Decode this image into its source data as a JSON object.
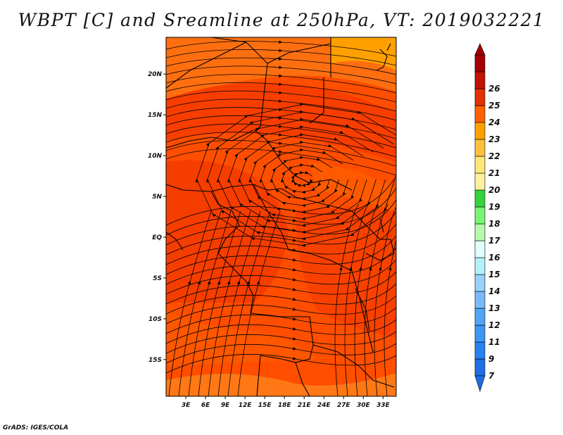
{
  "title": "WBPT [C] and Sreamline at 250hPa, VT: 2019032221",
  "credit": "GrADS: IGES/COLA",
  "map": {
    "lat_ticks": [
      "20N",
      "15N",
      "10N",
      "5N",
      "EQ",
      "5S",
      "10S",
      "15S"
    ],
    "lat_values": [
      20,
      15,
      10,
      5,
      0,
      -5,
      -10,
      -15
    ],
    "lon_ticks": [
      "3E",
      "6E",
      "9E",
      "12E",
      "15E",
      "18E",
      "21E",
      "24E",
      "27E",
      "30E",
      "33E"
    ],
    "lon_values": [
      3,
      6,
      9,
      12,
      15,
      18,
      21,
      24,
      27,
      30,
      33
    ],
    "lat_range": [
      -19.5,
      24.5
    ],
    "lon_range": [
      0,
      35
    ]
  },
  "colorbar": {
    "labels": [
      "7",
      "9",
      "11",
      "12",
      "13",
      "14",
      "15",
      "16",
      "17",
      "18",
      "19",
      "20",
      "21",
      "22",
      "23",
      "24",
      "25",
      "26"
    ],
    "colors": [
      "#1e6ee6",
      "#2882f0",
      "#3c96f5",
      "#50a5f5",
      "#78b9fa",
      "#96d2fa",
      "#b4f0fa",
      "#e1ffff",
      "#b4faaa",
      "#78f573",
      "#37d23c",
      "#fff0a0",
      "#ffe678",
      "#ffc03c",
      "#ffa000",
      "#ff6000",
      "#e13200",
      "#c01400",
      "#a50000"
    ]
  },
  "field_colors": {
    "base": "#ff4e00",
    "warm": "#ff6000",
    "dark": "#f03200",
    "light": "#ff8a1e",
    "north": "#ffa000"
  }
}
